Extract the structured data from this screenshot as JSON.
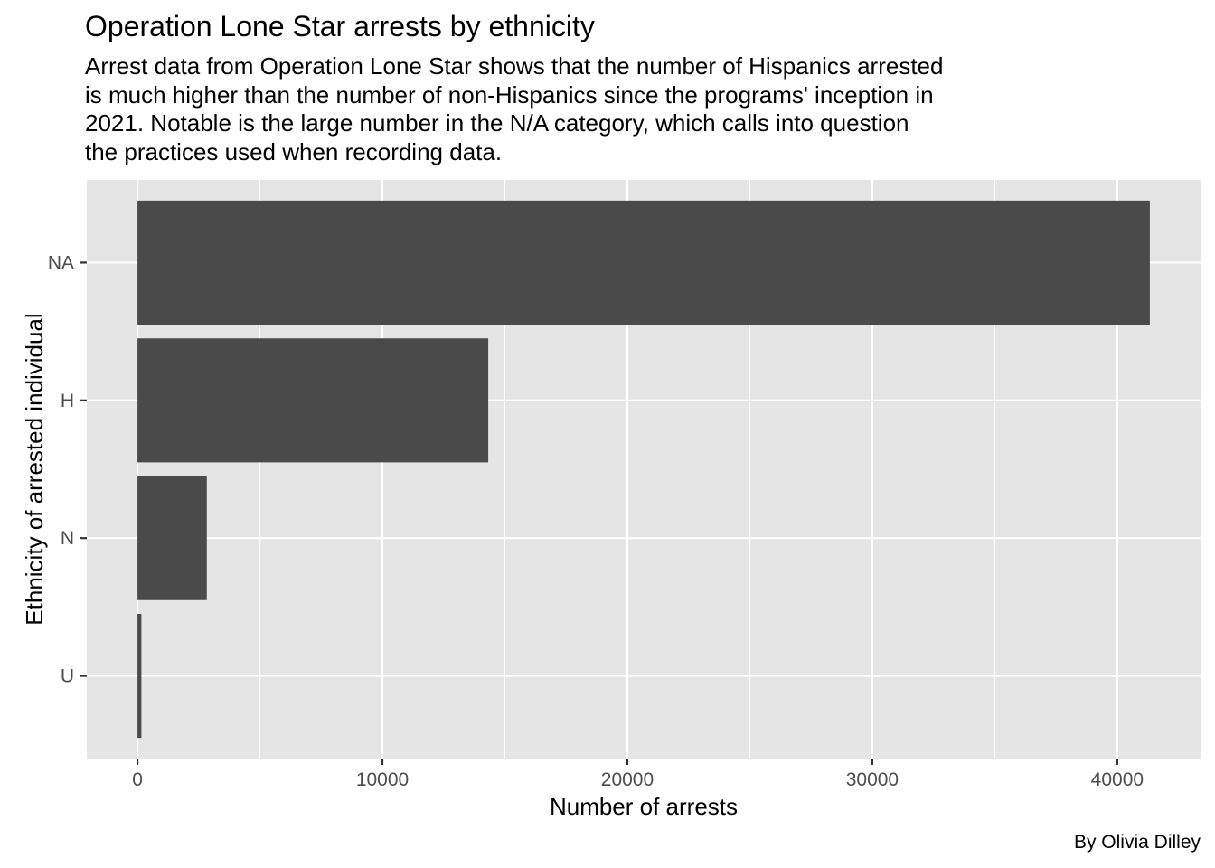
{
  "chart_data": {
    "type": "bar",
    "orientation": "horizontal",
    "title": "Operation Lone Star arrests by ethnicity",
    "subtitle": [
      "Arrest data from Operation Lone Star shows that the number of Hispanics arrested",
      "is much higher than the number of non-Hispanics since the programs' inception in",
      "2021. Notable is the large number in the N/A category, which calls into question",
      "the practices used when recording data."
    ],
    "caption": "By Olivia Dilley",
    "xlabel": "Number of arrests",
    "ylabel": "Ethnicity of arrested individual",
    "categories": [
      "NA",
      "H",
      "N",
      "U"
    ],
    "values": [
      41330,
      14320,
      2830,
      160
    ],
    "xlim": [
      -2070,
      43400
    ],
    "xticks": [
      0,
      10000,
      20000,
      30000,
      40000
    ],
    "xticks_minor": [
      5000,
      15000,
      25000,
      35000
    ],
    "grid": true,
    "colors": {
      "panel_background": "#e5e5e5",
      "grid_line": "#ffffff",
      "bar_fill": "#4a4a4a",
      "tick_text": "#4d4d4d",
      "tick_mark": "#333333"
    }
  }
}
